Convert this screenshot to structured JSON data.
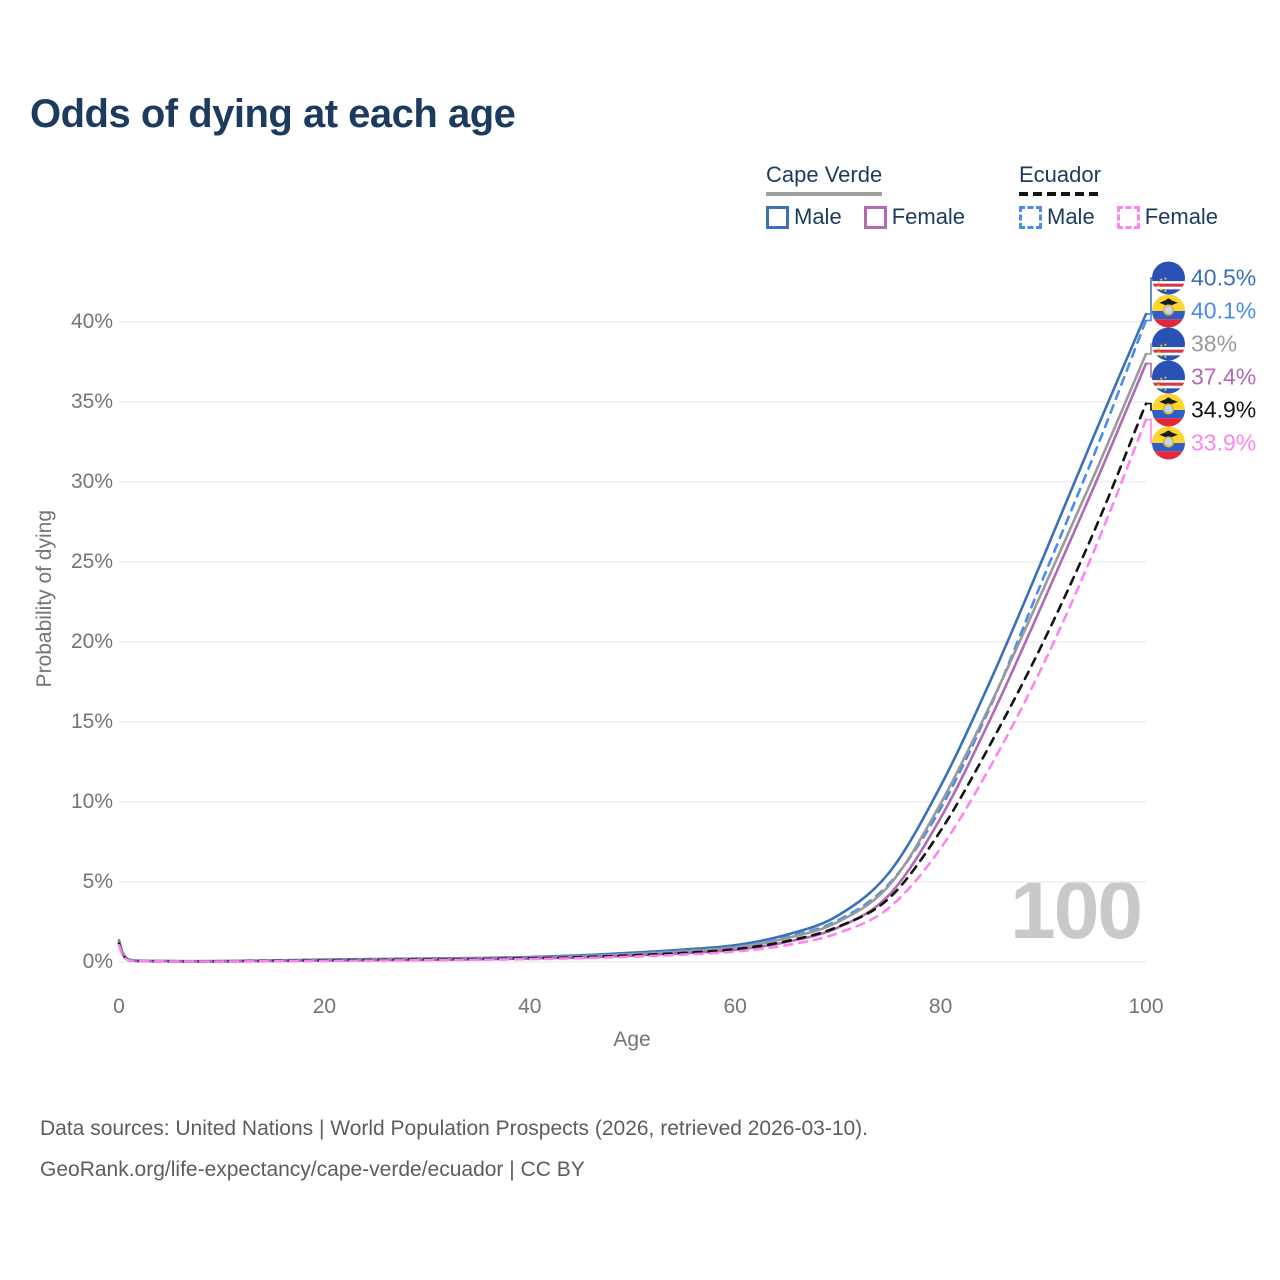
{
  "title": "Odds of dying at each age",
  "watermark": "100",
  "legend": {
    "groups": [
      {
        "name": "Cape Verde",
        "line_style": "solid",
        "underline_color": "#9e9e9e",
        "items": [
          {
            "label": "Male",
            "color": "#3c71b8"
          },
          {
            "label": "Female",
            "color": "#af6bb4"
          }
        ]
      },
      {
        "name": "Ecuador",
        "line_style": "dashed",
        "underline_color": "#141414",
        "items": [
          {
            "label": "Male",
            "color": "#4a8bf0"
          },
          {
            "label": "Female",
            "color": "#fd85ef"
          }
        ]
      }
    ]
  },
  "axes": {
    "x": {
      "label": "Age",
      "range": [
        0,
        100
      ],
      "ticks": [
        {
          "value": 0,
          "label": "0"
        },
        {
          "value": 20,
          "label": "20"
        },
        {
          "value": 40,
          "label": "40"
        },
        {
          "value": 60,
          "label": "60"
        },
        {
          "value": 80,
          "label": "80"
        },
        {
          "value": 100,
          "label": "100"
        }
      ]
    },
    "y": {
      "label": "Probability of dying",
      "range": [
        0,
        43
      ],
      "grid": true,
      "ticks": [
        {
          "value": 0,
          "label": "0%"
        },
        {
          "value": 5,
          "label": "5%"
        },
        {
          "value": 10,
          "label": "10%"
        },
        {
          "value": 15,
          "label": "15%"
        },
        {
          "value": 20,
          "label": "20%"
        },
        {
          "value": 25,
          "label": "25%"
        },
        {
          "value": 30,
          "label": "30%"
        },
        {
          "value": 35,
          "label": "35%"
        },
        {
          "value": 40,
          "label": "40%"
        }
      ]
    }
  },
  "chart_data": {
    "type": "line",
    "title": "Odds of dying at each age",
    "xlabel": "Age",
    "ylabel": "Probability of dying",
    "x": [
      0,
      1,
      5,
      10,
      15,
      20,
      25,
      30,
      35,
      40,
      45,
      50,
      55,
      60,
      65,
      70,
      75,
      80,
      85,
      90,
      95,
      100
    ],
    "series": [
      {
        "name": "Cape Verde Male",
        "color": "#3c71b8",
        "dashed": false,
        "flag": "cape-verde",
        "end_label": "40.5%",
        "end_value": 40.5,
        "values": [
          1.35,
          0.14,
          0.06,
          0.06,
          0.1,
          0.15,
          0.18,
          0.21,
          0.25,
          0.31,
          0.42,
          0.58,
          0.78,
          1.05,
          1.7,
          2.9,
          5.6,
          11.0,
          17.8,
          25.3,
          33.0,
          40.5
        ]
      },
      {
        "name": "Ecuador Male",
        "color": "#4a8bf0",
        "dashed": true,
        "flag": "ecuador",
        "end_label": "40.1%",
        "end_value": 40.1,
        "values": [
          1.25,
          0.12,
          0.05,
          0.05,
          0.09,
          0.14,
          0.17,
          0.2,
          0.24,
          0.29,
          0.38,
          0.52,
          0.7,
          0.95,
          1.55,
          2.6,
          4.9,
          9.6,
          16.2,
          24.0,
          31.8,
          40.1
        ]
      },
      {
        "name": "Cape Verde",
        "color": "#9a9a9a",
        "dashed": false,
        "flag": "cape-verde",
        "end_label": "38%",
        "end_value": 38.0,
        "values": [
          1.28,
          0.12,
          0.05,
          0.05,
          0.08,
          0.12,
          0.15,
          0.17,
          0.21,
          0.26,
          0.35,
          0.48,
          0.66,
          0.9,
          1.48,
          2.5,
          4.8,
          9.9,
          16.3,
          23.3,
          30.5,
          38.0
        ]
      },
      {
        "name": "Cape Verde Female",
        "color": "#af6bb4",
        "dashed": false,
        "flag": "cape-verde",
        "end_label": "37.4%",
        "end_value": 37.4,
        "values": [
          1.2,
          0.1,
          0.05,
          0.04,
          0.07,
          0.09,
          0.11,
          0.13,
          0.17,
          0.22,
          0.29,
          0.4,
          0.55,
          0.75,
          1.25,
          2.15,
          4.2,
          9.0,
          15.4,
          22.5,
          29.8,
          37.4
        ]
      },
      {
        "name": "Ecuador",
        "color": "#141414",
        "dashed": true,
        "flag": "ecuador",
        "end_label": "34.9%",
        "end_value": 34.9,
        "values": [
          1.15,
          0.1,
          0.04,
          0.04,
          0.07,
          0.1,
          0.13,
          0.15,
          0.18,
          0.23,
          0.3,
          0.42,
          0.57,
          0.8,
          1.3,
          2.2,
          4.0,
          8.2,
          13.8,
          20.0,
          27.0,
          34.9
        ]
      },
      {
        "name": "Ecuador Female",
        "color": "#fd85ef",
        "dashed": true,
        "flag": "ecuador",
        "end_label": "33.9%",
        "end_value": 33.9,
        "values": [
          1.05,
          0.09,
          0.04,
          0.03,
          0.05,
          0.07,
          0.09,
          0.11,
          0.14,
          0.18,
          0.24,
          0.33,
          0.46,
          0.65,
          1.05,
          1.8,
          3.4,
          7.1,
          12.4,
          18.6,
          25.8,
          33.9
        ]
      }
    ],
    "legend_position": "top-right",
    "grid": "horizontal-only"
  },
  "footer": {
    "line1": "Data sources: United Nations | World Population Prospects (2026, retrieved 2026-03-10).",
    "line2": "GeoRank.org/life-expectancy/cape-verde/ecuador | CC BY"
  }
}
